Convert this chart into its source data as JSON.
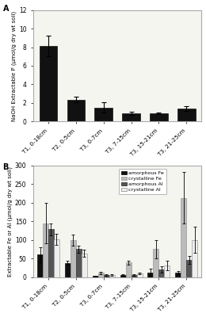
{
  "categories": [
    "T1, 0-18cm",
    "T2, 0-5cm",
    "T3, 0-7cm",
    "T3, 7-15cm",
    "T3, 15-21cm",
    "T3, 21-25cm"
  ],
  "panel_A": {
    "title": "A",
    "values": [
      8.1,
      2.35,
      1.5,
      0.9,
      0.9,
      1.4
    ],
    "errors": [
      1.1,
      0.3,
      0.55,
      0.15,
      0.1,
      0.28
    ],
    "ylabel": "NaOH Extractable P (μmol/g dry wt soil)",
    "ylim": [
      0,
      12
    ],
    "yticks": [
      0,
      2,
      4,
      6,
      8,
      10,
      12
    ],
    "bar_color": "#111111"
  },
  "panel_B": {
    "title": "B",
    "ylabel": "Extractable Fe or Al (μmol/g dry wt soil)",
    "ylim": [
      0,
      300
    ],
    "yticks": [
      0,
      50,
      100,
      150,
      200,
      250,
      300
    ],
    "legend_labels": [
      "amorphous Fe",
      "crystalline Fe",
      "amorphous Al",
      "crystalline Al"
    ],
    "colors": [
      "#111111",
      "#bbbbbb",
      "#555555",
      "#eeeeee"
    ],
    "edgecolors": [
      "#111111",
      "#999999",
      "#333333",
      "#999999"
    ],
    "values": {
      "amorphous_Fe": [
        60,
        38,
        3,
        5,
        12,
        12
      ],
      "crystalline_Fe": [
        145,
        99,
        11,
        39,
        75,
        213
      ],
      "amorphous_Al": [
        128,
        75,
        5,
        5,
        20,
        46
      ],
      "crystalline_Al": [
        102,
        64,
        6,
        9,
        31,
        100
      ]
    },
    "errors": {
      "amorphous_Fe": [
        20,
        5,
        1,
        2,
        10,
        5
      ],
      "crystalline_Fe": [
        55,
        15,
        3,
        5,
        25,
        70
      ],
      "amorphous_Al": [
        15,
        10,
        2,
        2,
        8,
        10
      ],
      "crystalline_Al": [
        15,
        10,
        2,
        2,
        12,
        35
      ]
    }
  },
  "bg_color": "#f5f5f0"
}
